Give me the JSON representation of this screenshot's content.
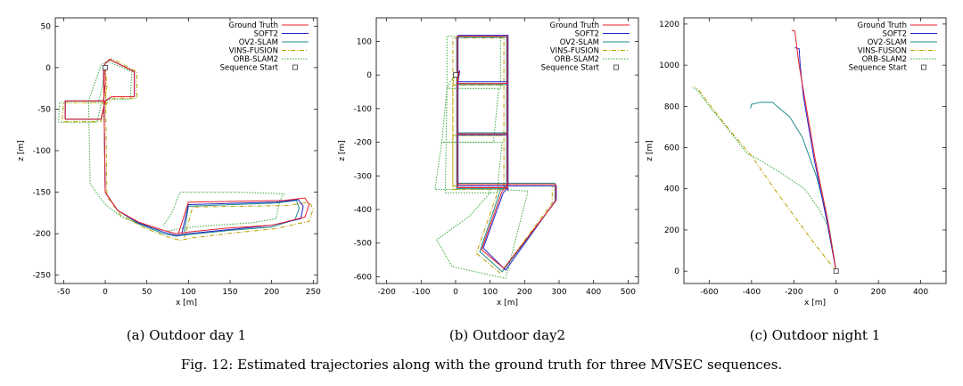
{
  "figure": {
    "caption": "Fig. 12: Estimated trajectories along with the ground truth for three MVSEC sequences."
  },
  "series_styles": [
    {
      "name": "Ground Truth",
      "color": "#e8202a",
      "dash": ""
    },
    {
      "name": "SOFT2",
      "color": "#2323c8",
      "dash": ""
    },
    {
      "name": "OV2-SLAM",
      "color": "#1f8c8c",
      "dash": ""
    },
    {
      "name": "VINS-FUSION",
      "color": "#b8a000",
      "dash": "5,2,1,2"
    },
    {
      "name": "ORB-SLAM2",
      "color": "#3aa83a",
      "dash": "1.5,1.5"
    },
    {
      "name": "Sequence Start",
      "color": "#555555",
      "dash": ""
    }
  ],
  "chart_data": [
    {
      "type": "line",
      "caption": "(a) Outdoor day 1",
      "xlabel": "x [m]",
      "ylabel": "z [m]",
      "xlim": [
        -60,
        255
      ],
      "ylim": [
        -260,
        60
      ],
      "xticks": [
        -50,
        0,
        50,
        100,
        150,
        200,
        250
      ],
      "yticks": [
        -250,
        -200,
        -150,
        -100,
        -50,
        0,
        50
      ],
      "legend": "top-right",
      "sequence_start": [
        0,
        0
      ],
      "series": [
        {
          "name": "Ground Truth",
          "x": [
            0,
            0,
            -2,
            -48,
            -48,
            -42,
            -5,
            0,
            8,
            35,
            35,
            5,
            0,
            -2,
            0,
            15,
            40,
            70,
            85,
            100,
            150,
            200,
            240,
            245,
            240,
            215,
            100,
            88
          ],
          "y": [
            0,
            -20,
            -40,
            -40,
            -62,
            -62,
            -62,
            -40,
            -35,
            -35,
            -5,
            10,
            5,
            0,
            -150,
            -172,
            -186,
            -196,
            -200,
            -198,
            -193,
            -190,
            -180,
            -165,
            -157,
            -160,
            -162,
            -200
          ]
        },
        {
          "name": "SOFT2",
          "x": [
            0,
            0,
            -2,
            -48,
            -48,
            -42,
            -5,
            0,
            8,
            35,
            35,
            5,
            0,
            -2,
            0,
            15,
            40,
            70,
            85,
            100,
            150,
            200,
            235,
            238,
            232,
            205,
            100,
            92
          ],
          "y": [
            0,
            -20,
            -40,
            -40,
            -62,
            -62,
            -62,
            -40,
            -35,
            -35,
            -5,
            10,
            5,
            0,
            -150,
            -172,
            -187,
            -198,
            -202,
            -200,
            -195,
            -190,
            -182,
            -167,
            -159,
            -162,
            -165,
            -200
          ]
        },
        {
          "name": "OV2-SLAM",
          "x": [
            0,
            0,
            -2,
            -48,
            -48,
            -42,
            -5,
            0,
            8,
            35,
            35,
            5,
            0,
            -2,
            0,
            15,
            40,
            70,
            85,
            100,
            150,
            200,
            228,
            233,
            230,
            205,
            100,
            95
          ],
          "y": [
            0,
            -20,
            -40,
            -40,
            -62,
            -62,
            -62,
            -40,
            -35,
            -35,
            -5,
            10,
            5,
            0,
            -150,
            -172,
            -188,
            -200,
            -203,
            -201,
            -196,
            -192,
            -183,
            -170,
            -160,
            -163,
            -167,
            -198
          ]
        },
        {
          "name": "VINS-FUSION",
          "x": [
            0,
            2,
            0,
            -50,
            -52,
            -45,
            -5,
            2,
            10,
            38,
            38,
            8,
            2,
            0,
            2,
            18,
            45,
            72,
            90,
            105,
            155,
            205,
            245,
            250,
            245,
            220,
            105,
            95
          ],
          "y": [
            0,
            -22,
            -42,
            -42,
            -65,
            -65,
            -65,
            -42,
            -37,
            -37,
            -5,
            11,
            6,
            0,
            -155,
            -177,
            -192,
            -203,
            -208,
            -205,
            -199,
            -194,
            -185,
            -170,
            -162,
            -166,
            -168,
            -205
          ]
        },
        {
          "name": "ORB-SLAM2",
          "x": [
            0,
            -3,
            -8,
            -55,
            -56,
            -48,
            -10,
            -5,
            5,
            30,
            32,
            2,
            -5,
            -20,
            -18,
            0,
            20,
            50,
            75,
            95,
            130,
            175,
            205,
            210,
            215,
            160,
            90,
            80,
            70
          ],
          "y": [
            0,
            -20,
            -42,
            -42,
            -66,
            -66,
            -66,
            -44,
            -38,
            -38,
            -5,
            8,
            3,
            -40,
            -140,
            -165,
            -180,
            -192,
            -197,
            -193,
            -190,
            -187,
            -182,
            -160,
            -152,
            -150,
            -150,
            -175,
            -190
          ]
        }
      ]
    },
    {
      "type": "line",
      "caption": "(b) Outdoor day2",
      "xlabel": "x [m]",
      "ylabel": "z [m]",
      "xlim": [
        -230,
        530
      ],
      "ylim": [
        -620,
        170
      ],
      "xticks": [
        -200,
        -100,
        0,
        100,
        200,
        300,
        400,
        500
      ],
      "yticks": [
        -600,
        -500,
        -400,
        -300,
        -200,
        -100,
        0,
        100
      ],
      "legend": "top-right",
      "sequence_start": [
        0,
        0
      ],
      "series": [
        {
          "name": "Ground Truth",
          "x": [
            0,
            10,
            5,
            5,
            150,
            150,
            5,
            5,
            150,
            150,
            5,
            5,
            150,
            150,
            5,
            5,
            150,
            290,
            290,
            140,
            75,
            135,
            150,
            150
          ],
          "y": [
            0,
            10,
            -25,
            115,
            115,
            -25,
            -25,
            -175,
            -175,
            -25,
            -25,
            -335,
            -335,
            -175,
            -175,
            -325,
            -325,
            -325,
            -375,
            -575,
            -520,
            -345,
            -330,
            -340
          ]
        },
        {
          "name": "SOFT2",
          "x": [
            0,
            12,
            7,
            7,
            152,
            152,
            7,
            7,
            152,
            152,
            7,
            7,
            152,
            152,
            7,
            7,
            152,
            292,
            292,
            145,
            80,
            138,
            152,
            152
          ],
          "y": [
            0,
            12,
            -20,
            118,
            118,
            -20,
            -20,
            -178,
            -178,
            -20,
            -20,
            -330,
            -330,
            -178,
            -178,
            -330,
            -330,
            -330,
            -370,
            -580,
            -515,
            -350,
            -335,
            -345
          ]
        },
        {
          "name": "OV2-SLAM",
          "x": [
            0,
            8,
            3,
            3,
            148,
            148,
            3,
            3,
            148,
            148,
            3,
            3,
            148,
            148,
            3,
            3,
            148,
            288,
            288,
            135,
            70,
            130,
            148,
            148
          ],
          "y": [
            0,
            8,
            -28,
            112,
            112,
            -28,
            -28,
            -172,
            -172,
            -28,
            -28,
            -338,
            -338,
            -172,
            -172,
            -322,
            -322,
            -322,
            -378,
            -585,
            -525,
            -342,
            -328,
            -338
          ]
        },
        {
          "name": "VINS-FUSION",
          "x": [
            0,
            -2,
            -8,
            -8,
            140,
            140,
            -8,
            -8,
            140,
            140,
            -8,
            -8,
            140,
            140,
            -8,
            -8,
            140,
            280,
            280,
            130,
            60,
            125,
            140,
            140
          ],
          "y": [
            0,
            5,
            -30,
            110,
            110,
            -30,
            -30,
            -180,
            -180,
            -30,
            -30,
            -340,
            -340,
            -180,
            -180,
            -330,
            -330,
            -330,
            -380,
            -590,
            -530,
            -340,
            -325,
            -335
          ]
        },
        {
          "name": "ORB-SLAM2",
          "x": [
            0,
            -15,
            -25,
            -25,
            130,
            130,
            -25,
            -40,
            110,
            125,
            -25,
            -30,
            120,
            135,
            -40,
            -60,
            90,
            125,
            210,
            145,
            -10,
            -55,
            40,
            100,
            90
          ],
          "y": [
            0,
            -20,
            -40,
            115,
            115,
            -40,
            -40,
            -200,
            -200,
            -40,
            -40,
            -350,
            -350,
            -200,
            -200,
            -340,
            -340,
            -340,
            -345,
            -605,
            -570,
            -490,
            -420,
            -350,
            -330
          ]
        }
      ]
    },
    {
      "type": "line",
      "caption": "(c) Outdoor night 1",
      "xlabel": "x [m]",
      "ylabel": "z [m]",
      "xlim": [
        -720,
        520
      ],
      "ylim": [
        -60,
        1230
      ],
      "xticks": [
        -600,
        -400,
        -200,
        0,
        200,
        400
      ],
      "yticks": [
        0,
        200,
        400,
        600,
        800,
        1000,
        1200
      ],
      "legend": "top-right",
      "sequence_start": [
        0,
        0
      ],
      "series": [
        {
          "name": "Ground Truth",
          "x": [
            0,
            -40,
            -100,
            -150,
            -175,
            -185,
            -195,
            -210
          ],
          "y": [
            0,
            250,
            550,
            850,
            1000,
            1080,
            1165,
            1170
          ]
        },
        {
          "name": "SOFT2",
          "x": [
            0,
            -45,
            -105,
            -155,
            -170,
            -175,
            -195
          ],
          "y": [
            0,
            250,
            550,
            850,
            1000,
            1080,
            1085
          ]
        },
        {
          "name": "OV2-SLAM",
          "x": [
            0,
            -40,
            -90,
            -160,
            -220,
            -280,
            -300,
            -360,
            -400,
            -405
          ],
          "y": [
            0,
            250,
            450,
            650,
            750,
            800,
            820,
            820,
            810,
            790
          ]
        },
        {
          "name": "VINS-FUSION",
          "x": [
            0,
            -100,
            -200,
            -300,
            -400,
            -500,
            -600,
            -650,
            -670
          ],
          "y": [
            0,
            130,
            270,
            410,
            560,
            680,
            810,
            880,
            895
          ]
        },
        {
          "name": "ORB-SLAM2",
          "x": [
            0,
            -30,
            -80,
            -150,
            -250,
            -330,
            -380,
            -420,
            -520,
            -600,
            -650,
            -680
          ],
          "y": [
            0,
            200,
            300,
            400,
            470,
            520,
            550,
            570,
            700,
            800,
            870,
            895
          ]
        }
      ]
    }
  ]
}
